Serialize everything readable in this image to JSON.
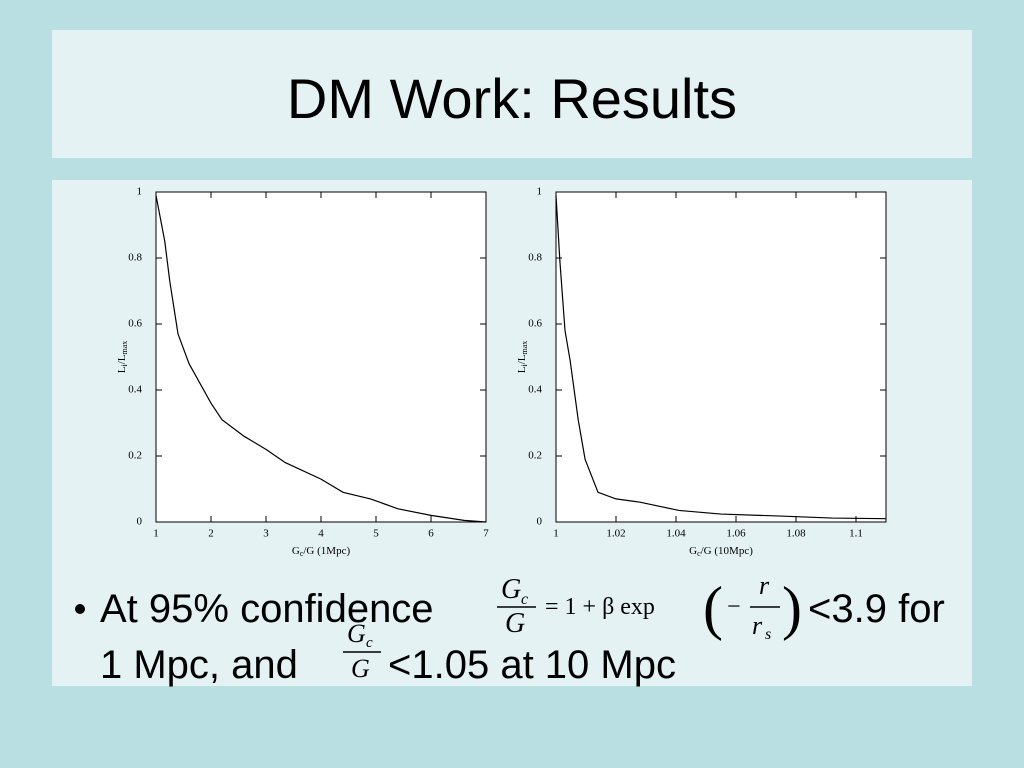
{
  "title": "DM Work: Results",
  "chart_data": [
    {
      "type": "line",
      "color": "#000000",
      "xlabel": [
        "G",
        "c",
        "/G (1Mpc)"
      ],
      "ylabel": [
        "L",
        "i",
        "/L",
        "max"
      ],
      "x": [
        1,
        1.16,
        1.25,
        1.4,
        1.6,
        2,
        2.2,
        2.6,
        3,
        3.35,
        4,
        4.4,
        4.9,
        5.4,
        6,
        6.6,
        7
      ],
      "values": [
        0.99,
        0.85,
        0.73,
        0.57,
        0.48,
        0.36,
        0.31,
        0.26,
        0.22,
        0.18,
        0.13,
        0.09,
        0.07,
        0.04,
        0.02,
        0.005,
        0
      ],
      "xlim": [
        1,
        7
      ],
      "xticks": [
        1,
        2,
        3,
        4,
        5,
        6,
        7
      ],
      "ylim": [
        0,
        1
      ],
      "yticks": [
        0,
        0.2,
        0.4,
        0.6,
        0.8,
        1
      ]
    },
    {
      "type": "line",
      "color": "#000000",
      "xlabel": [
        "G",
        "c",
        "/G (10Mpc)"
      ],
      "ylabel": [
        "L",
        "i",
        "/L",
        "max"
      ],
      "x": [
        1,
        1.0013,
        1.003,
        1.0047,
        1.0074,
        1.0097,
        1.014,
        1.02,
        1.028,
        1.041,
        1.055,
        1.075,
        1.092,
        1.11
      ],
      "values": [
        0.99,
        0.79,
        0.58,
        0.49,
        0.31,
        0.19,
        0.09,
        0.07,
        0.06,
        0.035,
        0.024,
        0.018,
        0.012,
        0.01
      ],
      "xlim": [
        1,
        1.11
      ],
      "xticks": [
        1,
        1.02,
        1.04,
        1.06,
        1.08,
        1.1
      ],
      "ylim": [
        0,
        1
      ],
      "yticks": [
        0,
        0.2,
        0.4,
        0.6,
        0.8,
        1
      ]
    }
  ],
  "bullet": {
    "text1": "At 95% confidence",
    "formula1": {
      "num": "G",
      "num_sub": "c",
      "den": "G",
      "rhs": "= 1 + β exp",
      "minus": "−",
      "inner_num": "r",
      "inner_den": "r",
      "inner_den_sub": "s"
    },
    "text2": "<3.9 for",
    "text3": "1 Mpc, and",
    "formula2": {
      "num": "G",
      "num_sub": "c",
      "den": "G"
    },
    "text4": "<1.05 at 10 Mpc"
  }
}
